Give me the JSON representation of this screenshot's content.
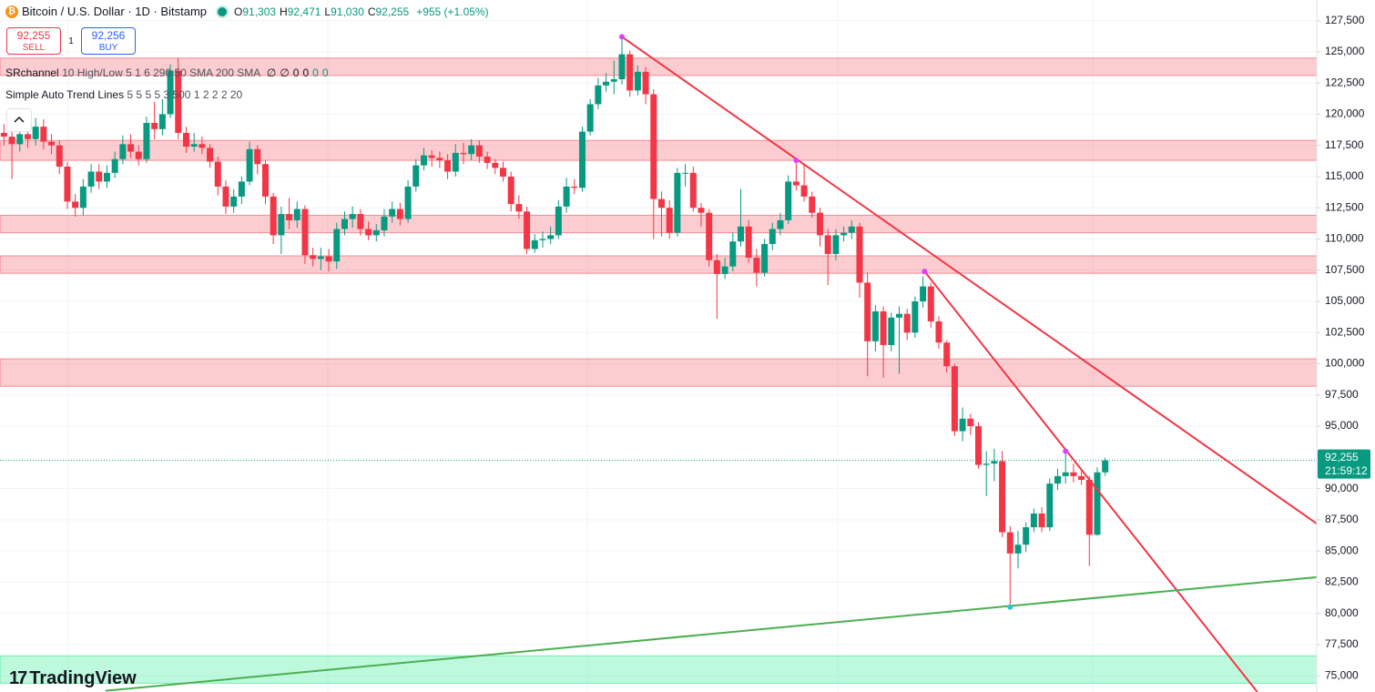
{
  "chart_data": {
    "type": "candlestick",
    "title": "Bitcoin / U.S. Dollar · 1D · Bitstamp",
    "readout": [
      {
        "key": "O",
        "text": "91,303"
      },
      {
        "key": "H",
        "text": "92,471"
      },
      {
        "key": "L",
        "text": "91,030"
      },
      {
        "key": "C",
        "text": "92,255"
      }
    ],
    "change": "+955 (+1.05%)",
    "trade": {
      "sell_price": "92,255",
      "sell_label": "SELL",
      "spread": "1",
      "buy_price": "92,256",
      "buy_label": "BUY"
    },
    "indicators": [
      {
        "name": "SRchannel",
        "params": "10 High/Low 5 1 6 290 50 SMA 200 SMA",
        "values": [
          "∅",
          "∅",
          "0",
          "0",
          "0",
          "0"
        ]
      },
      {
        "name": "Simple Auto Trend Lines",
        "params": "5 5 5 5 3 500 1 2 2 2 20"
      }
    ],
    "logo": "TradingView",
    "up_color": "#089981",
    "down_color": "#f23645",
    "xlim": [
      -0.5,
      165.7
    ],
    "ylim": [
      73700,
      129150
    ],
    "yticks": [
      {
        "value": 75000,
        "label": "75,000"
      },
      {
        "value": 77500,
        "label": "77,500"
      },
      {
        "value": 80000,
        "label": "80,000"
      },
      {
        "value": 82500,
        "label": "82,500"
      },
      {
        "value": 85000,
        "label": "85,000"
      },
      {
        "value": 87500,
        "label": "87,500"
      },
      {
        "value": 90000,
        "label": "90,000"
      },
      {
        "value": 95000,
        "label": "95,000"
      },
      {
        "value": 97500,
        "label": "97,500"
      },
      {
        "value": 100000,
        "label": "100,000"
      },
      {
        "value": 102500,
        "label": "102,500"
      },
      {
        "value": 105000,
        "label": "105,000"
      },
      {
        "value": 107500,
        "label": "107,500"
      },
      {
        "value": 110000,
        "label": "110,000"
      },
      {
        "value": 112500,
        "label": "112,500"
      },
      {
        "value": 115000,
        "label": "115,000"
      },
      {
        "value": 117500,
        "label": "117,500"
      },
      {
        "value": 120000,
        "label": "120,000"
      },
      {
        "value": 122500,
        "label": "122,500"
      },
      {
        "value": 125000,
        "label": "125,000"
      },
      {
        "value": 127500,
        "label": "127,500"
      }
    ],
    "last_price": {
      "value": 92255,
      "label": "92,255",
      "countdown": "21:59:12",
      "color": "#089981"
    },
    "zones": [
      {
        "low": 123100,
        "high": 124500,
        "color": "#f23645"
      },
      {
        "low": 116300,
        "high": 117900,
        "color": "#f23645"
      },
      {
        "low": 110500,
        "high": 111900,
        "color": "#f23645"
      },
      {
        "low": 107250,
        "high": 108650,
        "color": "#f23645"
      },
      {
        "low": 98200,
        "high": 100400,
        "color": "#f23645"
      },
      {
        "low": 74400,
        "high": 76600,
        "color": "#00e676"
      }
    ],
    "trend_lines": [
      {
        "color": "#f23645",
        "x": [
          78,
          165.7
        ],
        "y": [
          126200,
          87190
        ]
      },
      {
        "color": "#f23645",
        "x": [
          116.2,
          158.2
        ],
        "y": [
          107400,
          73700
        ]
      },
      {
        "color": "#4caf50",
        "x": [
          12.8,
          165.7
        ],
        "y": [
          73800,
          82900
        ]
      }
    ],
    "pivots": [
      {
        "x": 78,
        "y": 126200,
        "color": "#e040fb"
      },
      {
        "x": 100,
        "y": 116300,
        "color": "#e040fb"
      },
      {
        "x": 116.2,
        "y": 107400,
        "color": "#e040fb"
      },
      {
        "x": 134,
        "y": 93000,
        "color": "#e040fb"
      },
      {
        "x": 127,
        "y": 80500,
        "color": "#26c6da"
      }
    ],
    "open": [
      118500,
      118200,
      117600,
      118400,
      118000,
      119000,
      117800,
      117500,
      115800,
      113000,
      112500,
      114200,
      115400,
      114600,
      115300,
      116400,
      117600,
      117000,
      116400,
      119300,
      118800,
      120000,
      123500,
      118500,
      117400,
      117600,
      117300,
      116200,
      114200,
      112600,
      113400,
      114600,
      117200,
      116000,
      113400,
      110300,
      112000,
      111500,
      112400,
      108700,
      108400,
      108600,
      108200,
      110800,
      111600,
      112000,
      110800,
      110300,
      110700,
      111800,
      112400,
      111600,
      114200,
      115900,
      116700,
      116500,
      116300,
      115400,
      116900,
      116800,
      117500,
      116600,
      116100,
      115700,
      115000,
      112800,
      112200,
      109200,
      109900,
      110000,
      110300,
      112600,
      114200,
      114100,
      118600,
      120800,
      122300,
      122600,
      122800,
      124800,
      121900,
      123400,
      121600,
      113200,
      112500,
      110500,
      115300,
      115300,
      112500,
      112100,
      108300,
      107200,
      107800,
      109800,
      111000,
      108500,
      107300,
      109600,
      110800,
      111500,
      114600,
      114300,
      113400,
      112100,
      110300,
      108800,
      110300,
      110500,
      111000,
      106500,
      101800,
      104200,
      101500,
      103700,
      104000,
      102500,
      105000,
      106200,
      103400,
      101700,
      99800,
      94600,
      95600,
      95000,
      91900,
      92000,
      92200,
      86500,
      84800,
      85500,
      86900,
      88000,
      86900,
      90400,
      91000,
      91300,
      91000,
      90700,
      86300,
      91303
    ],
    "high": [
      119200,
      119000,
      119100,
      119000,
      119700,
      119600,
      118400,
      117900,
      116200,
      113600,
      114800,
      116000,
      116000,
      115900,
      117000,
      118300,
      118400,
      117500,
      119800,
      121000,
      121200,
      124000,
      124500,
      119000,
      118500,
      118200,
      117600,
      116600,
      114700,
      114000,
      115000,
      117800,
      117500,
      116300,
      113700,
      112600,
      113300,
      113000,
      112700,
      109300,
      109300,
      109200,
      111300,
      112200,
      112600,
      112400,
      111400,
      111200,
      112400,
      113000,
      112900,
      114700,
      116400,
      117300,
      117100,
      117000,
      116800,
      117600,
      117700,
      118000,
      117900,
      117000,
      116400,
      116200,
      115400,
      113500,
      112600,
      110400,
      110600,
      111000,
      113100,
      114900,
      114800,
      119000,
      121200,
      122900,
      123300,
      124300,
      126200,
      125100,
      123900,
      123800,
      122000,
      113800,
      113100,
      115700,
      116000,
      115800,
      112900,
      112400,
      108800,
      108500,
      110500,
      114000,
      111500,
      109200,
      110000,
      111300,
      112100,
      115100,
      116300,
      116000,
      113800,
      112500,
      110800,
      110800,
      111000,
      111500,
      111300,
      107300,
      104700,
      104600,
      104100,
      104600,
      104400,
      105400,
      107000,
      106500,
      103800,
      101900,
      100000,
      96500,
      96000,
      95300,
      93000,
      93200,
      93000,
      87000,
      86600,
      87300,
      88400,
      88500,
      90800,
      91600,
      92900,
      92000,
      91400,
      91000,
      91700,
      92471
    ],
    "low": [
      117500,
      114800,
      117000,
      117300,
      117500,
      117200,
      116800,
      115200,
      112400,
      111800,
      111900,
      113700,
      114000,
      114100,
      114900,
      116000,
      116500,
      115900,
      116100,
      118000,
      118300,
      119700,
      118000,
      116900,
      117000,
      116800,
      115700,
      113500,
      112000,
      112100,
      112800,
      114300,
      115200,
      112800,
      109600,
      108800,
      110800,
      110900,
      108000,
      107800,
      107500,
      107400,
      107600,
      110300,
      110900,
      110300,
      109900,
      109800,
      110200,
      111300,
      111100,
      111300,
      113800,
      115500,
      115800,
      115700,
      114800,
      115000,
      116000,
      116300,
      116100,
      115600,
      115200,
      114600,
      112200,
      111600,
      108800,
      108900,
      109300,
      109600,
      110000,
      112100,
      113600,
      113800,
      118300,
      120400,
      121800,
      121600,
      122400,
      121400,
      121500,
      120800,
      110000,
      110200,
      110000,
      110200,
      114200,
      112200,
      111000,
      107800,
      103600,
      106800,
      107400,
      109400,
      108100,
      106200,
      107000,
      109100,
      110300,
      111200,
      113900,
      113000,
      111700,
      109400,
      106300,
      108300,
      109800,
      110000,
      105300,
      99000,
      101000,
      98900,
      101000,
      99200,
      101900,
      102100,
      104500,
      102900,
      101200,
      99300,
      94200,
      93800,
      94300,
      91600,
      89400,
      90600,
      86100,
      80600,
      83600,
      84900,
      86500,
      86500,
      86600,
      89900,
      90400,
      90500,
      90300,
      83800,
      86200,
      91030
    ],
    "close": [
      118200,
      117600,
      118400,
      118000,
      119000,
      117800,
      117500,
      115800,
      113000,
      112500,
      114200,
      115400,
      114600,
      115300,
      116400,
      117600,
      117000,
      116400,
      119300,
      118800,
      120000,
      123500,
      118500,
      117400,
      117600,
      117300,
      116200,
      114200,
      112600,
      113400,
      114600,
      117200,
      116000,
      113400,
      110300,
      112000,
      111500,
      112400,
      108700,
      108400,
      108600,
      108200,
      110800,
      111600,
      112000,
      110800,
      110300,
      110700,
      111800,
      112400,
      111600,
      114200,
      115900,
      116700,
      116500,
      116300,
      115400,
      116900,
      116800,
      117500,
      116600,
      116100,
      115700,
      115000,
      112800,
      112200,
      109200,
      109900,
      110000,
      110300,
      112600,
      114200,
      114100,
      118600,
      120800,
      122300,
      122600,
      122800,
      124800,
      121900,
      123400,
      121600,
      113200,
      112500,
      110500,
      115300,
      115300,
      112500,
      112100,
      108300,
      107200,
      107800,
      109800,
      111000,
      108500,
      107300,
      109600,
      110800,
      111500,
      114600,
      114300,
      113400,
      112100,
      110300,
      108800,
      110300,
      110500,
      111000,
      106500,
      101800,
      104200,
      101500,
      103700,
      104000,
      102500,
      105000,
      106200,
      103400,
      101700,
      99800,
      94600,
      95600,
      95000,
      91900,
      92000,
      92200,
      86500,
      84800,
      85500,
      86900,
      88000,
      86900,
      90400,
      91000,
      91300,
      91000,
      90700,
      86300,
      91300,
      92255
    ]
  }
}
